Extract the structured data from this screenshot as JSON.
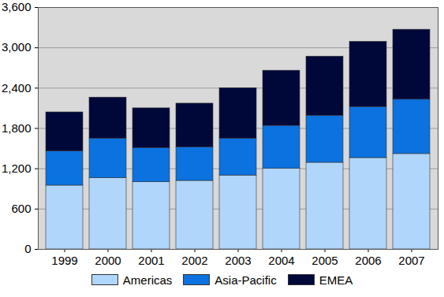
{
  "chart_data": {
    "type": "bar",
    "stacked": true,
    "grid": true,
    "legend": "bottom",
    "categories": [
      "1999",
      "2000",
      "2001",
      "2002",
      "2003",
      "2004",
      "2005",
      "2006",
      "2007"
    ],
    "series": [
      {
        "name": "Americas",
        "color": "#b0d6fb",
        "values": [
          950,
          1060,
          1000,
          1020,
          1100,
          1200,
          1290,
          1360,
          1420
        ]
      },
      {
        "name": "Asia-Pacific",
        "color": "#0b72e0",
        "values": [
          510,
          590,
          510,
          500,
          550,
          640,
          700,
          760,
          810
        ]
      },
      {
        "name": "EMEA",
        "color": "#00083a",
        "values": [
          580,
          610,
          590,
          650,
          750,
          820,
          880,
          970,
          1040
        ]
      }
    ],
    "ylim": [
      0,
      3600
    ],
    "yticks": [
      0,
      600,
      1200,
      1800,
      2400,
      3000,
      3600
    ]
  }
}
